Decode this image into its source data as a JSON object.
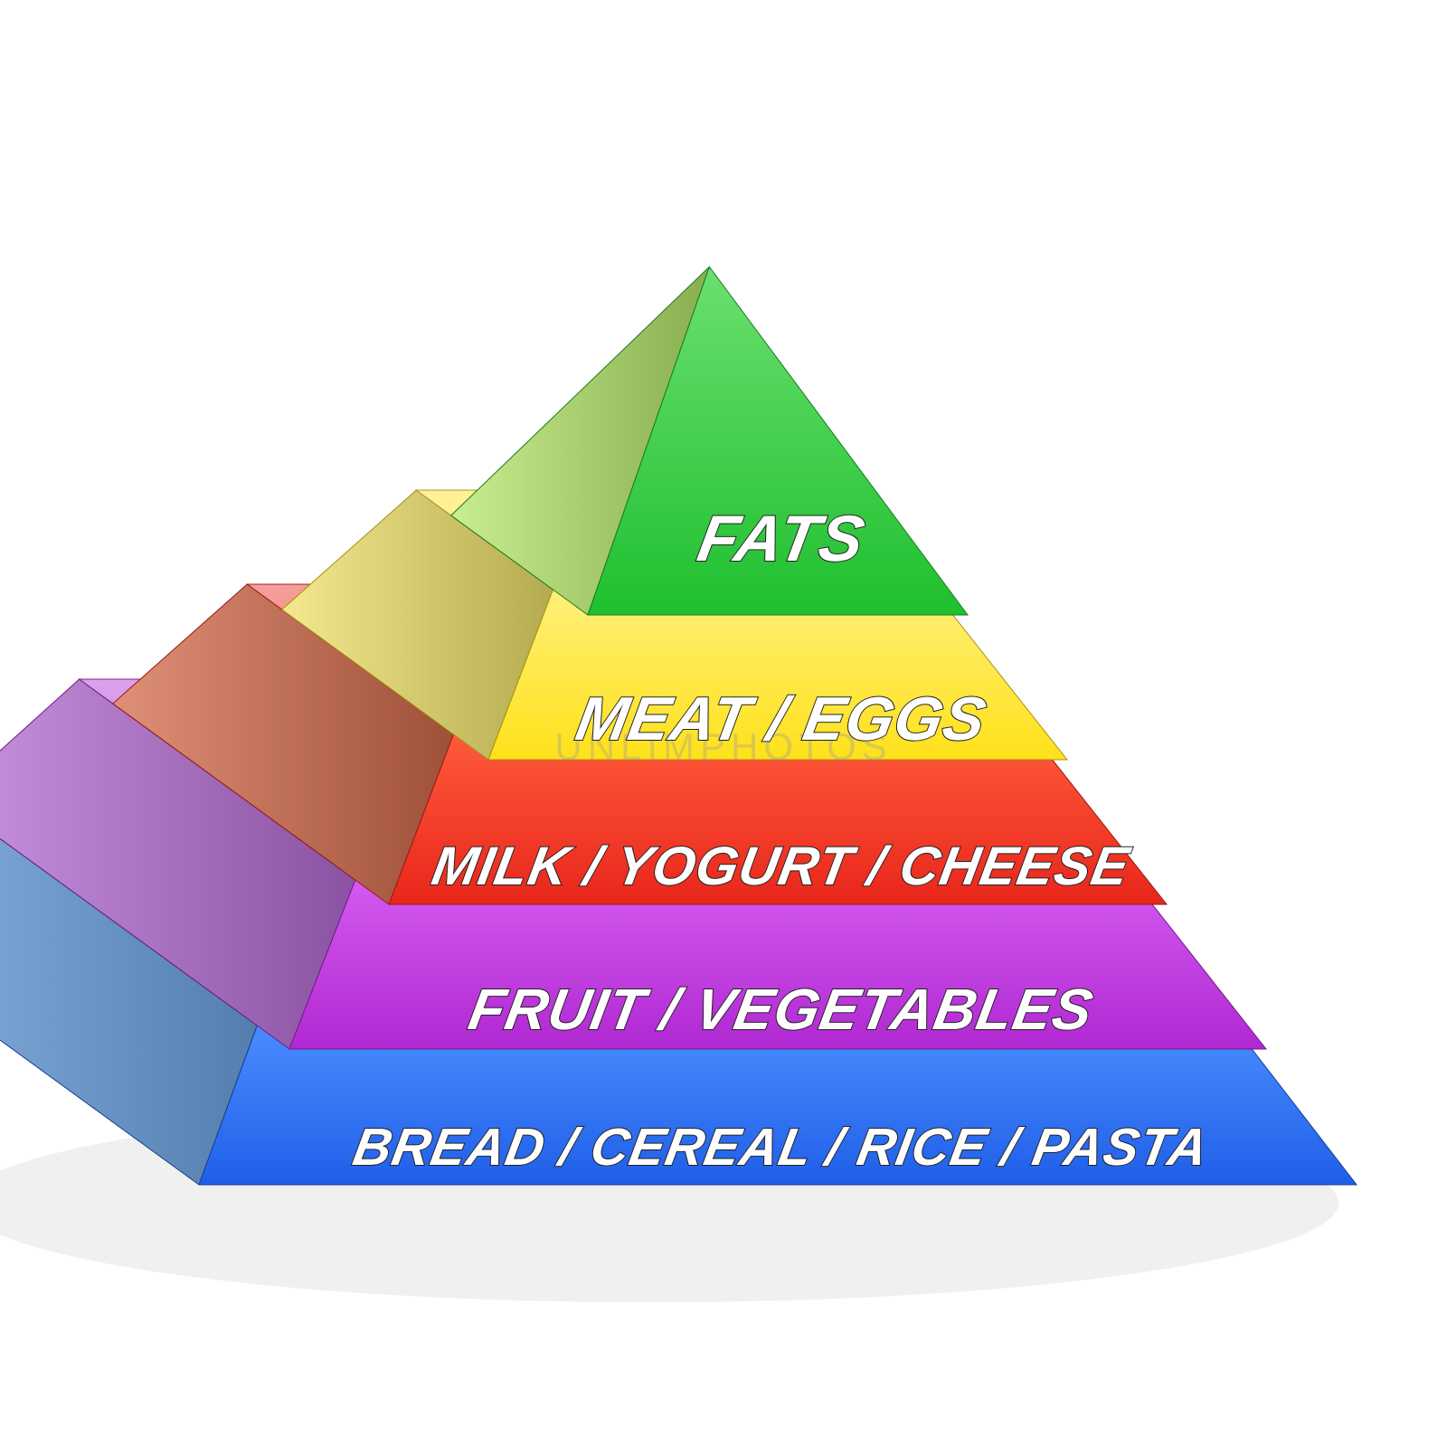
{
  "pyramid": {
    "type": "infographic",
    "background_color": "#ffffff",
    "watermark": "UNLIMPHOTOS",
    "shadow_color": "#e6e6e6",
    "label_font_weight": 900,
    "label_font_style": "italic",
    "label_fill": "#ffffff",
    "label_stroke": "#1a1a1a",
    "tiers": [
      {
        "id": "fats",
        "label": "FATS",
        "front_color": "#1fbf2f",
        "front_highlight": "#6be06f",
        "side_color": "#b7e86b",
        "font_size": 72
      },
      {
        "id": "meat-eggs",
        "label": "MEAT / EGGS",
        "front_color": "#ffe11a",
        "front_highlight": "#ffef7a",
        "side_color": "#f0e26a",
        "font_size": 68
      },
      {
        "id": "dairy",
        "label": "MILK / YOGURT / CHEESE",
        "front_color": "#e8261b",
        "front_highlight": "#ff5a3a",
        "side_color": "#d46b4a",
        "font_size": 60
      },
      {
        "id": "fruit-veg",
        "label": "FRUIT / VEGETABLES",
        "front_color": "#b028d2",
        "front_highlight": "#d45af0",
        "side_color": "#b86fd6",
        "font_size": 64
      },
      {
        "id": "grains",
        "label": "BREAD / CEREAL / RICE / PASTA",
        "front_color": "#1f5fe8",
        "front_highlight": "#4a8cff",
        "side_color": "#6fa8e8",
        "font_size": 58
      }
    ]
  }
}
